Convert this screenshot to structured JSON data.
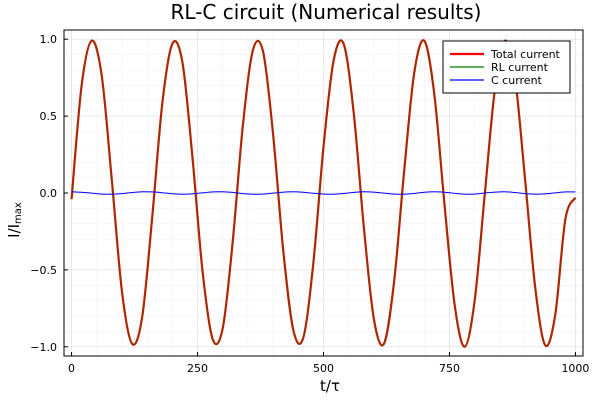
{
  "chart_data": {
    "type": "line",
    "title": "RL-C circuit (Numerical results)",
    "xlabel": "t/τ",
    "ylabel": "I/I",
    "ylabel_subscript": "max",
    "xlim": [
      -15,
      1015
    ],
    "ylim": [
      -1.06,
      1.06
    ],
    "xticks": [
      0,
      250,
      500,
      750,
      1000
    ],
    "xtick_labels": [
      "0",
      "250",
      "500",
      "750",
      "1000"
    ],
    "yticks": [
      -1.0,
      -0.5,
      0.0,
      0.5,
      1.0
    ],
    "ytick_labels": [
      "−1.0",
      "−0.5",
      "0.0",
      "0.5",
      "1.0"
    ],
    "grid": true,
    "minor_grid": true,
    "legend_position": "top-right",
    "colors": {
      "total": "#ff0000",
      "rl": "#008000",
      "c": "#0000ff",
      "overlap": "#7a4000"
    },
    "series": [
      {
        "name": "Total current",
        "color": "#ff0000",
        "x": [
          0,
          20,
          40,
          60,
          80,
          100,
          120,
          140,
          160,
          180,
          200,
          220,
          240,
          260,
          280,
          300,
          320,
          340,
          360,
          380,
          400,
          420,
          440,
          460,
          480,
          500,
          520,
          540,
          560,
          580,
          600,
          620,
          640,
          660,
          680,
          700,
          720,
          740,
          760,
          780,
          800,
          820,
          840,
          860,
          880,
          900,
          920,
          940,
          960,
          980,
          1000
        ],
        "y": [
          -0.04,
          0.7,
          0.99,
          0.76,
          0.08,
          -0.64,
          -0.98,
          -0.81,
          -0.16,
          0.58,
          0.97,
          0.85,
          0.23,
          -0.51,
          -0.95,
          -0.88,
          -0.31,
          0.44,
          0.93,
          0.92,
          0.38,
          -0.37,
          -0.89,
          -0.94,
          -0.45,
          0.3,
          0.86,
          0.97,
          0.52,
          -0.22,
          -0.82,
          -0.98,
          -0.58,
          0.14,
          0.78,
          0.99,
          0.64,
          -0.07,
          -0.72,
          -1.0,
          -0.7,
          -0.01,
          0.67,
          0.99,
          0.75,
          0.09,
          -0.61,
          -0.99,
          -0.79,
          -0.17,
          -0.03
        ]
      },
      {
        "name": "RL current",
        "color": "#008000",
        "x": [
          0,
          20,
          40,
          60,
          80,
          100,
          120,
          140,
          160,
          180,
          200,
          220,
          240,
          260,
          280,
          300,
          320,
          340,
          360,
          380,
          400,
          420,
          440,
          460,
          480,
          500,
          520,
          540,
          560,
          580,
          600,
          620,
          640,
          660,
          680,
          700,
          720,
          740,
          760,
          780,
          800,
          820,
          840,
          860,
          880,
          900,
          920,
          940,
          960,
          980,
          1000
        ],
        "y": [
          -0.04,
          0.7,
          0.99,
          0.76,
          0.08,
          -0.64,
          -0.98,
          -0.81,
          -0.16,
          0.58,
          0.97,
          0.85,
          0.23,
          -0.51,
          -0.95,
          -0.88,
          -0.31,
          0.44,
          0.93,
          0.92,
          0.38,
          -0.37,
          -0.89,
          -0.94,
          -0.45,
          0.3,
          0.86,
          0.97,
          0.52,
          -0.22,
          -0.82,
          -0.98,
          -0.58,
          0.14,
          0.78,
          0.99,
          0.64,
          -0.07,
          -0.72,
          -1.0,
          -0.7,
          -0.01,
          0.67,
          0.99,
          0.75,
          0.09,
          -0.61,
          -0.99,
          -0.79,
          -0.17,
          -0.03
        ]
      },
      {
        "name": "C current",
        "color": "#0000ff",
        "x": [
          0,
          20,
          40,
          60,
          80,
          100,
          120,
          140,
          160,
          180,
          200,
          220,
          240,
          260,
          280,
          300,
          320,
          340,
          360,
          380,
          400,
          420,
          440,
          460,
          480,
          500,
          520,
          540,
          560,
          580,
          600,
          620,
          640,
          660,
          680,
          700,
          720,
          740,
          760,
          780,
          800,
          820,
          840,
          860,
          880,
          900,
          920,
          940,
          960,
          980,
          1000
        ],
        "y": [
          0.008,
          0.005,
          -0.001,
          -0.007,
          -0.008,
          -0.004,
          0.003,
          0.008,
          0.007,
          0.002,
          -0.005,
          -0.008,
          -0.006,
          0.001,
          0.007,
          0.008,
          0.004,
          -0.004,
          -0.008,
          -0.007,
          -0.001,
          0.006,
          0.008,
          0.005,
          -0.002,
          -0.007,
          -0.008,
          -0.003,
          0.004,
          0.008,
          0.006,
          -0.001,
          -0.007,
          -0.008,
          -0.003,
          0.005,
          0.008,
          0.005,
          -0.002,
          -0.008,
          -0.007,
          0.0,
          0.006,
          0.008,
          0.003,
          -0.004,
          -0.008,
          -0.006,
          0.001,
          0.007,
          0.007
        ]
      }
    ]
  }
}
